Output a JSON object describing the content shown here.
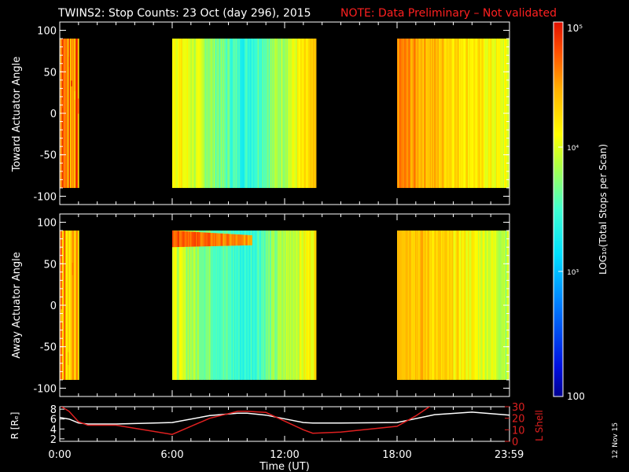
{
  "title": {
    "main": "TWINS2: Stop Counts: 23 Oct (day 296), 2015",
    "note": "NOTE: Data Preliminary – Not validated"
  },
  "side_label": "12 Nov 15",
  "colors": {
    "background": "#000000",
    "axes": "#ffffff",
    "note": "#ff2020",
    "lshell": "#e02020",
    "r": "#ffffff"
  },
  "chart_data": [
    {
      "type": "heatmap",
      "ylabel": "Toward Actuator Angle",
      "ylim": [
        -110,
        110
      ],
      "yticks": [
        100,
        50,
        0,
        -50,
        -100
      ],
      "xlim_hours": [
        0,
        24
      ],
      "colorscale": "log",
      "blocks": [
        {
          "start": "00:00",
          "end": "01:00",
          "angle_range": [
            -90,
            90
          ],
          "log_level": 4.55,
          "variability": "high"
        },
        {
          "start": "06:00",
          "end": "13:40",
          "angle_range": [
            -90,
            90
          ],
          "log_level_start": 4.2,
          "log_level_middle": 3.4,
          "log_level_end": 4.3
        },
        {
          "start": "18:00",
          "end": "23:59",
          "angle_range": [
            -90,
            90
          ],
          "log_level_start": 4.6,
          "log_level_end": 4.0
        }
      ]
    },
    {
      "type": "heatmap",
      "ylabel": "Away Actuator Angle",
      "ylim": [
        -110,
        110
      ],
      "yticks": [
        100,
        50,
        0,
        -50,
        -100
      ],
      "xlim_hours": [
        0,
        24
      ],
      "colorscale": "log",
      "blocks": [
        {
          "start": "00:00",
          "end": "01:00",
          "angle_range": [
            -90,
            90
          ],
          "log_level": 4.55,
          "variability": "high"
        },
        {
          "start": "06:00",
          "end": "13:40",
          "angle_range": [
            -90,
            90
          ],
          "log_level_start": 4.0,
          "log_level_middle": 3.4,
          "log_level_end": 4.2,
          "band": {
            "angle_range": [
              70,
              90
            ],
            "log_level": 4.8
          }
        },
        {
          "start": "18:00",
          "end": "23:59",
          "angle_range": [
            -90,
            90
          ],
          "log_level_start": 4.5,
          "log_level_end": 3.9
        }
      ]
    },
    {
      "type": "line",
      "xlabel": "Time (UT)",
      "xticks": [
        "0:00",
        "6:00",
        "12:00",
        "18:00",
        "23:59"
      ],
      "xtick_hours": [
        0,
        6,
        12,
        18,
        23.983
      ],
      "ylabel_left": "R [Rₑ]",
      "yticks_left": [
        "8",
        "6",
        "4",
        "2"
      ],
      "ylim_left": [
        1.5,
        8.5
      ],
      "ylabel_right": "L Shell",
      "yticks_right": [
        "30",
        "20",
        "10",
        "0"
      ],
      "ylim_right": [
        0,
        30
      ],
      "series": [
        {
          "name": "R [Rₑ]",
          "axis": "left",
          "x": [
            0,
            0.5,
            1,
            1.5,
            3,
            6,
            8,
            9.5,
            10,
            11,
            13,
            13.5,
            15,
            18,
            20,
            22,
            24
          ],
          "y": [
            6.3,
            6.0,
            5.2,
            5.0,
            5.0,
            5.3,
            6.7,
            7.2,
            7.2,
            6.8,
            5.3,
            5.2,
            5.2,
            5.3,
            6.9,
            7.4,
            6.8
          ]
        },
        {
          "name": "L Shell",
          "axis": "right",
          "x": [
            0,
            0.5,
            1,
            1.5,
            3,
            6,
            8,
            9.5,
            10,
            11,
            13,
            13.5,
            15,
            18,
            19,
            20
          ],
          "y": [
            31,
            26,
            17,
            14,
            14,
            6,
            20,
            26,
            26,
            25,
            10,
            7,
            8,
            13,
            22,
            33
          ]
        }
      ]
    }
  ],
  "colorbar": {
    "label": "LOG₁₀(Total Stops per Scan)",
    "ticks": [
      "10⁵",
      "10⁴",
      "10³",
      "100"
    ],
    "log_min": 2,
    "log_max": 5
  }
}
